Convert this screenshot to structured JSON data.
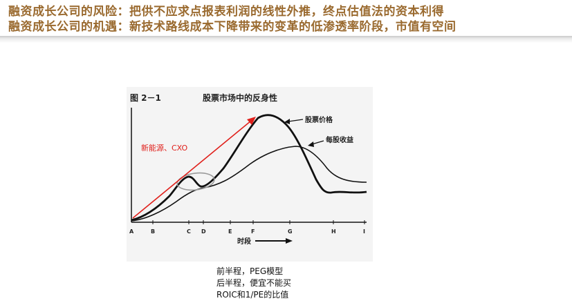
{
  "header": {
    "line1": "融资成长公司的风险：把供不应求点报表利润的线性外推，终点估值法的资本利得",
    "line2": "融资成长公司的机遇：新技术路线成本下降带来的变革的低渗透率阶段，市值有空间"
  },
  "figure": {
    "figure_label": "图 2－1",
    "title": "股票市场中的反身性",
    "annotation": "新能源、CXO",
    "x_axis_label": "时段",
    "x_ticks": [
      "A",
      "B",
      "C",
      "D",
      "E",
      "F",
      "G",
      "H",
      "I"
    ],
    "series": [
      {
        "name": "股票价格",
        "color": "#111111"
      },
      {
        "name": "每股收益",
        "color": "#111111"
      }
    ],
    "annotation_color": "#e0201b"
  },
  "notes": [
    "前半程，PEG模型",
    "后半程，便宜不能买",
    "ROIC和1/PE的比值"
  ]
}
